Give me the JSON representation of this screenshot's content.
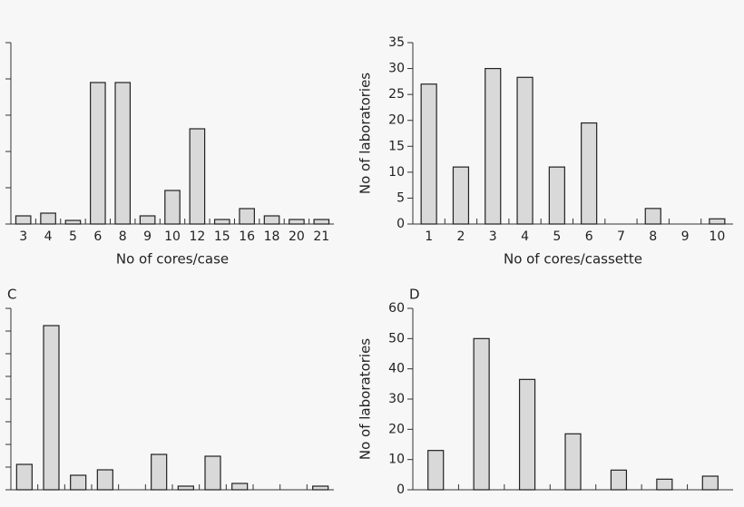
{
  "chart_data": [
    {
      "type": "bar",
      "xlabel": "No of cores/case",
      "categories": [
        "3",
        "4",
        "5",
        "6",
        "8",
        "9",
        "10",
        "12",
        "15",
        "16",
        "18",
        "20",
        "21"
      ],
      "values": [
        2.25,
        3,
        1,
        39,
        39,
        2.25,
        9.25,
        26.25,
        1.25,
        4.25,
        2.25,
        1.25,
        1.25
      ],
      "color": "#d9d9d9",
      "ylim": [
        0,
        50
      ],
      "yticks": [
        0,
        10,
        20,
        30,
        40,
        50
      ],
      "ytick_labels": false
    },
    {
      "type": "bar",
      "xlabel": "No of cores/cassette",
      "ylabel": "No of laboratories",
      "categories": [
        "1",
        "2",
        "3",
        "4",
        "5",
        "6",
        "7",
        "8",
        "9",
        "10"
      ],
      "values": [
        27,
        11,
        30,
        28.3,
        11,
        19.5,
        0,
        3,
        0,
        1
      ],
      "color": "#d9d9d9",
      "ylim": [
        0,
        35
      ],
      "yticks": [
        0,
        5,
        10,
        15,
        20,
        25,
        30,
        35
      ],
      "ytick_labels": true
    },
    {
      "type": "bar",
      "title": "C",
      "categories": [
        null,
        null,
        null,
        null,
        null,
        null,
        null,
        null,
        null,
        null,
        null,
        null
      ],
      "values": [
        11.2,
        72.4,
        6.4,
        8.8,
        0,
        15.6,
        1.6,
        14.8,
        2.8,
        0,
        0,
        1.6
      ],
      "color": "#d9d9d9",
      "ylim": [
        0,
        80
      ],
      "yticks": [
        0,
        10,
        20,
        30,
        40,
        50,
        60,
        70,
        80
      ],
      "ytick_labels": false
    },
    {
      "type": "bar",
      "title": "D",
      "ylabel": "No of laboratories",
      "categories": [
        null,
        null,
        null,
        null,
        null,
        null,
        null
      ],
      "values": [
        13,
        50,
        36.5,
        18.5,
        6.5,
        3.5,
        4.5
      ],
      "color": "#d9d9d9",
      "ylim": [
        0,
        60
      ],
      "yticks": [
        0,
        10,
        20,
        30,
        40,
        50,
        60
      ],
      "ytick_labels": true
    }
  ]
}
